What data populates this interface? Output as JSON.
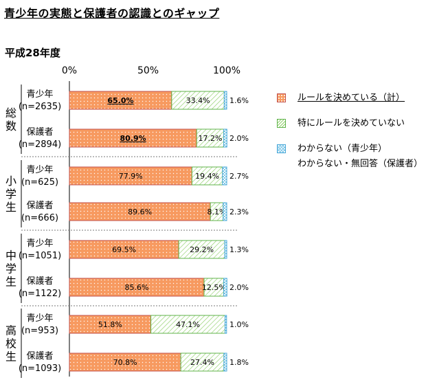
{
  "title": "青少年の実態と保護者の認識とのギャップ",
  "subtitle": "平成28年度",
  "legend": {
    "items": [
      {
        "label": "ルールを決めている（計）",
        "underlined": true
      },
      {
        "label": "特にルールを決めていない",
        "underlined": false
      },
      {
        "label": "わからない（青少年）",
        "label2": "わからない・無回答（保護者）",
        "underlined": false
      }
    ]
  },
  "colors": {
    "rule": "#F79A60",
    "rule_border": "#C0504D",
    "special": "#8FCF6A",
    "unknown": "#7CC6E8"
  },
  "chart_data": {
    "type": "bar",
    "orientation": "horizontal",
    "stacked": true,
    "xlim": [
      0,
      100
    ],
    "x_ticks": [
      "0%",
      "50%",
      "100%"
    ],
    "series": [
      {
        "name": "ルールを決めている（計）",
        "values": [
          65.0,
          80.9,
          77.9,
          89.6,
          69.5,
          85.6,
          51.8,
          70.8
        ]
      },
      {
        "name": "特にルールを決めていない",
        "values": [
          33.4,
          17.2,
          19.4,
          8.1,
          29.2,
          12.5,
          47.1,
          27.4
        ]
      },
      {
        "name": "わからない（青少年）／わからない・無回答（保護者）",
        "values": [
          1.6,
          2.0,
          2.7,
          2.3,
          1.3,
          2.0,
          1.0,
          1.8
        ]
      }
    ],
    "value_labels": [
      [
        "65.0%",
        "33.4%",
        "1.6%"
      ],
      [
        "80.9%",
        "17.2%",
        "2.0%"
      ],
      [
        "77.9%",
        "19.4%",
        "2.7%"
      ],
      [
        "89.6%",
        "8.1%",
        "2.3%"
      ],
      [
        "69.5%",
        "29.2%",
        "1.3%"
      ],
      [
        "85.6%",
        "12.5%",
        "2.0%"
      ],
      [
        "51.8%",
        "47.1%",
        "1.0%"
      ],
      [
        "70.8%",
        "27.4%",
        "1.8%"
      ]
    ],
    "bold_labels": [
      true,
      true,
      false,
      false,
      false,
      false,
      false,
      false
    ],
    "groups": [
      {
        "name": "総数",
        "rows": [
          {
            "label": "青少年",
            "n": "(n=2635)"
          },
          {
            "label": "保護者",
            "n": "(n=2894)"
          }
        ]
      },
      {
        "name": "小学生",
        "rows": [
          {
            "label": "青少年",
            "n": "(n=625)"
          },
          {
            "label": "保護者",
            "n": "(n=666)"
          }
        ]
      },
      {
        "name": "中学生",
        "rows": [
          {
            "label": "青少年",
            "n": "(n=1051)"
          },
          {
            "label": "保護者",
            "n": "(n=1122)"
          }
        ]
      },
      {
        "name": "高校生",
        "rows": [
          {
            "label": "青少年",
            "n": "(n=953)"
          },
          {
            "label": "保護者",
            "n": "(n=1093)"
          }
        ]
      }
    ]
  }
}
